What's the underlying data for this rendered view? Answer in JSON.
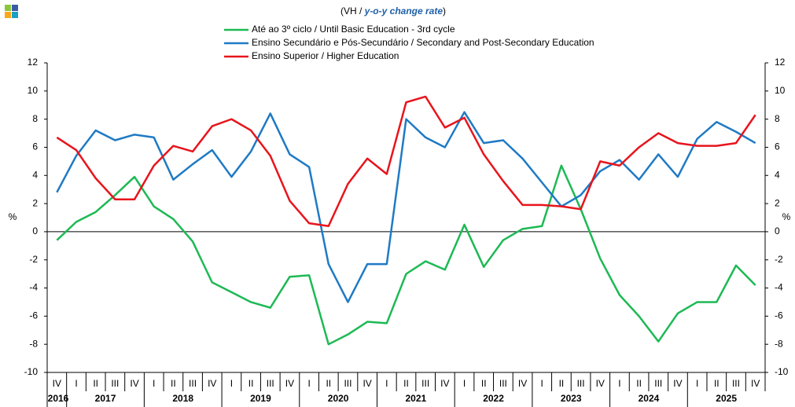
{
  "chart_data": {
    "type": "line",
    "subtitle": [
      "(VH / ",
      "y-o-y change rate",
      ")"
    ],
    "y_label": "%",
    "categories": [
      "IV",
      "I",
      "II",
      "III",
      "IV",
      "I",
      "II",
      "III",
      "IV",
      "I",
      "II",
      "III",
      "IV",
      "I",
      "II",
      "III",
      "IV",
      "I",
      "II",
      "III",
      "IV",
      "I",
      "II",
      "III",
      "IV",
      "I",
      "II",
      "III",
      "IV",
      "I",
      "II",
      "III",
      "IV",
      "I",
      "II",
      "III",
      "IV"
    ],
    "years": [
      "2016",
      "2017",
      "2018",
      "2019",
      "2020",
      "2021",
      "2022",
      "2023",
      "2024",
      "2025"
    ],
    "ylim": [
      -10,
      12
    ],
    "yticks": [
      -10,
      -8,
      -6,
      -4,
      -2,
      0,
      2,
      4,
      6,
      8,
      10,
      12
    ],
    "series": [
      {
        "name": "Até ao 3º ciclo / Until Basic Education - 3rd cycle",
        "color": "#1db954",
        "values": [
          -0.6,
          0.7,
          1.4,
          2.6,
          3.9,
          1.8,
          0.9,
          -0.7,
          -3.6,
          -4.3,
          -5.0,
          -5.4,
          -3.2,
          -3.1,
          -8.0,
          -7.3,
          -6.4,
          -6.5,
          -3.0,
          -2.1,
          -2.7,
          0.5,
          -2.5,
          -0.6,
          0.2,
          0.4,
          4.7,
          1.6,
          -1.9,
          -4.5,
          -6.0,
          -7.8,
          -5.8,
          -5.0,
          -5.0,
          -2.4,
          -3.8
        ]
      },
      {
        "name": "Ensino Secundário e Pós-Secundário / Secondary and Post-Secondary Education",
        "color": "#1f7ac4",
        "values": [
          2.8,
          5.4,
          7.2,
          6.5,
          6.9,
          6.7,
          3.7,
          4.8,
          5.8,
          3.9,
          5.7,
          8.4,
          5.5,
          4.6,
          -2.3,
          -5.0,
          -2.3,
          -2.3,
          8.0,
          6.7,
          6.0,
          8.5,
          6.3,
          6.5,
          5.2,
          3.5,
          1.8,
          2.6,
          4.3,
          5.1,
          3.7,
          5.5,
          3.9,
          6.6,
          7.8,
          7.1,
          6.3
        ]
      },
      {
        "name": "Ensino Superior / Higher Education",
        "color": "#e8141c",
        "values": [
          6.7,
          5.8,
          3.8,
          2.3,
          2.3,
          4.7,
          6.1,
          5.7,
          7.5,
          8.0,
          7.2,
          5.4,
          2.2,
          0.6,
          0.4,
          3.4,
          5.2,
          4.1,
          9.2,
          9.6,
          7.4,
          8.1,
          5.5,
          3.6,
          1.9,
          1.9,
          1.8,
          1.6,
          5.0,
          4.7,
          6.0,
          7.0,
          6.3,
          6.1,
          6.1,
          6.3,
          8.3
        ]
      }
    ]
  }
}
